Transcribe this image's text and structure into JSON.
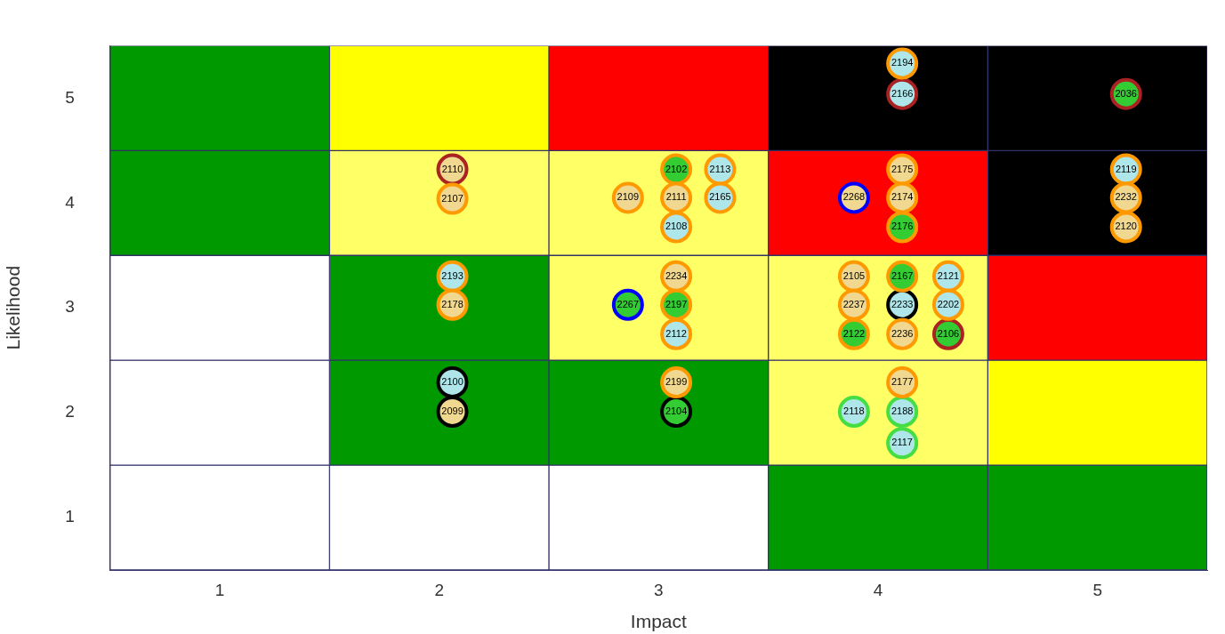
{
  "chart_data": {
    "type": "scatter",
    "xlabel": "Impact",
    "ylabel": "Likelihood",
    "xlim": [
      0.5,
      5.5
    ],
    "ylim": [
      0.5,
      5.5
    ],
    "xticks": [
      1,
      2,
      3,
      4,
      5
    ],
    "yticks": [
      1,
      2,
      3,
      4,
      5
    ],
    "legend": false,
    "marker": "circle",
    "series": [
      {
        "type": "bar",
        "x": [
          1,
          2,
          3,
          4,
          5
        ],
        "base": [
          4.5,
          4.5,
          4.5,
          4.5,
          4.5
        ],
        "values": [
          1,
          1,
          1,
          1,
          1
        ],
        "colors": [
          "#009900",
          "#ffff00",
          "#ff0000",
          "#000000",
          "#000000"
        ]
      },
      {
        "type": "bar",
        "x": [
          1,
          2,
          3,
          4,
          5
        ],
        "base": [
          3.5,
          3.5,
          3.5,
          3.5,
          3.5
        ],
        "values": [
          1,
          1,
          1,
          1,
          1
        ],
        "colors": [
          "#009900",
          "#ffff66",
          "#ffff66",
          "#ff0000",
          "#000000"
        ]
      },
      {
        "type": "bar",
        "x": [
          1,
          2,
          3,
          4,
          5
        ],
        "base": [
          2.5,
          2.5,
          2.5,
          2.5,
          2.5
        ],
        "values": [
          1,
          1,
          1,
          1,
          1
        ],
        "colors": [
          "#ffffff",
          "#009900",
          "#ffff66",
          "#ffff66",
          "#ff0000"
        ]
      },
      {
        "type": "bar",
        "x": [
          1,
          2,
          3,
          4,
          5
        ],
        "base": [
          1.5,
          1.5,
          1.5,
          1.5,
          1.5
        ],
        "values": [
          1,
          1,
          1,
          1,
          1
        ],
        "colors": [
          "#ffffff",
          "#009900",
          "#009900",
          "#ffff66",
          "#ffff00"
        ]
      },
      {
        "type": "bar",
        "x": [
          1,
          2,
          3,
          4,
          5
        ],
        "base": [
          0.5,
          0.5,
          0.5,
          0.5,
          0.5
        ],
        "values": [
          1,
          1,
          1,
          1,
          1
        ],
        "colors": [
          "#ffffff",
          "#ffffff",
          "#ffffff",
          "#009900",
          "#009900"
        ]
      },
      {
        "color": "#ff9900",
        "x": [
          4.11,
          2.06,
          3.08,
          3.28,
          2.86,
          3.08,
          3.28,
          3.08,
          4.11,
          4.11,
          4.11,
          5.13,
          5.13,
          5.13,
          2.06,
          2.06,
          3.08,
          3.08,
          3.08,
          3.89,
          4.11,
          4.32,
          3.89,
          4.32,
          3.89,
          4.11,
          3.08,
          4.11
        ],
        "values": [
          5.33,
          4.04,
          4.32,
          4.32,
          4.05,
          4.05,
          4.05,
          3.77,
          4.32,
          4.05,
          3.77,
          4.32,
          4.05,
          3.77,
          3.3,
          3.03,
          3.3,
          3.03,
          2.75,
          3.3,
          3.3,
          3.3,
          3.03,
          3.03,
          2.75,
          2.75,
          2.29,
          2.29
        ],
        "colors": [
          "#aee6ea",
          "#f0d890",
          "#33cc33",
          "#aee6ea",
          "#f0d890",
          "#f0d890",
          "#aee6ea",
          "#aee6ea",
          "#f0d890",
          "#f0d890",
          "#33cc33",
          "#aee6ea",
          "#f0d890",
          "#f0d890",
          "#aee6ea",
          "#f0d890",
          "#f0d890",
          "#33cc33",
          "#aee6ea",
          "#f0d890",
          "#33cc33",
          "#aee6ea",
          "#f0d890",
          "#aee6ea",
          "#33cc33",
          "#f0d890",
          "#f0d890",
          "#f0d890"
        ]
      },
      {
        "color": "#aa2222",
        "x": [
          4.11,
          5.13,
          2.06,
          4.32
        ],
        "values": [
          5.04,
          5.04,
          4.32,
          2.75
        ],
        "colors": [
          "#aee6ea",
          "#33cc33",
          "#f0d890",
          "#33cc33"
        ]
      },
      {
        "color": "#0000ff",
        "x": [
          3.89,
          2.86
        ],
        "values": [
          4.05,
          3.03
        ],
        "colors": [
          "#f0d890",
          "#33cc33"
        ]
      },
      {
        "color": "#000000",
        "x": [
          4.11,
          2.06,
          2.06,
          3.08
        ],
        "values": [
          3.03,
          2.29,
          2.01,
          2.01
        ],
        "colors": [
          "#aee6ea",
          "#aee6ea",
          "#f0d890",
          "#33cc33"
        ]
      },
      {
        "color": "#44dd44",
        "x": [
          3.89,
          4.11,
          4.11
        ],
        "values": [
          2.01,
          2.01,
          1.71
        ],
        "colors": [
          "#aee6ea",
          "#aee6ea",
          "#aee6ea"
        ]
      }
    ],
    "annotations": [
      {
        "text": "2194",
        "x": 4.11,
        "y": 5.33
      },
      {
        "text": "2107",
        "x": 2.06,
        "y": 4.04
      },
      {
        "text": "2102",
        "x": 3.08,
        "y": 4.32
      },
      {
        "text": "2113",
        "x": 3.28,
        "y": 4.32
      },
      {
        "text": "2109",
        "x": 2.86,
        "y": 4.05
      },
      {
        "text": "2111",
        "x": 3.08,
        "y": 4.05
      },
      {
        "text": "2165",
        "x": 3.28,
        "y": 4.05
      },
      {
        "text": "2108",
        "x": 3.08,
        "y": 3.77
      },
      {
        "text": "2175",
        "x": 4.11,
        "y": 4.32
      },
      {
        "text": "2174",
        "x": 4.11,
        "y": 4.05
      },
      {
        "text": "2176",
        "x": 4.11,
        "y": 3.77
      },
      {
        "text": "2119",
        "x": 5.13,
        "y": 4.32
      },
      {
        "text": "2232",
        "x": 5.13,
        "y": 4.05
      },
      {
        "text": "2120",
        "x": 5.13,
        "y": 3.77
      },
      {
        "text": "2193",
        "x": 2.06,
        "y": 3.3
      },
      {
        "text": "2178",
        "x": 2.06,
        "y": 3.03
      },
      {
        "text": "2234",
        "x": 3.08,
        "y": 3.3
      },
      {
        "text": "2197",
        "x": 3.08,
        "y": 3.03
      },
      {
        "text": "2112",
        "x": 3.08,
        "y": 2.75
      },
      {
        "text": "2105",
        "x": 3.89,
        "y": 3.3
      },
      {
        "text": "2167",
        "x": 4.11,
        "y": 3.3
      },
      {
        "text": "2121",
        "x": 4.32,
        "y": 3.3
      },
      {
        "text": "2237",
        "x": 3.89,
        "y": 3.03
      },
      {
        "text": "2202",
        "x": 4.32,
        "y": 3.03
      },
      {
        "text": "2122",
        "x": 3.89,
        "y": 2.75
      },
      {
        "text": "2236",
        "x": 4.11,
        "y": 2.75
      },
      {
        "text": "2199",
        "x": 3.08,
        "y": 2.29
      },
      {
        "text": "2177",
        "x": 4.11,
        "y": 2.29
      },
      {
        "text": "2166",
        "x": 4.11,
        "y": 5.04
      },
      {
        "text": "2036",
        "x": 5.13,
        "y": 5.04
      },
      {
        "text": "2110",
        "x": 2.06,
        "y": 4.32
      },
      {
        "text": "2106",
        "x": 4.32,
        "y": 2.75
      },
      {
        "text": "2268",
        "x": 3.89,
        "y": 4.05
      },
      {
        "text": "2267",
        "x": 2.86,
        "y": 3.03
      },
      {
        "text": "2233",
        "x": 4.11,
        "y": 3.03
      },
      {
        "text": "2100",
        "x": 2.06,
        "y": 2.29
      },
      {
        "text": "2099",
        "x": 2.06,
        "y": 2.01
      },
      {
        "text": "2104",
        "x": 3.08,
        "y": 2.01
      },
      {
        "text": "2118",
        "x": 3.89,
        "y": 2.01
      },
      {
        "text": "2188",
        "x": 4.11,
        "y": 2.01
      },
      {
        "text": "2117",
        "x": 4.11,
        "y": 1.71
      }
    ]
  }
}
